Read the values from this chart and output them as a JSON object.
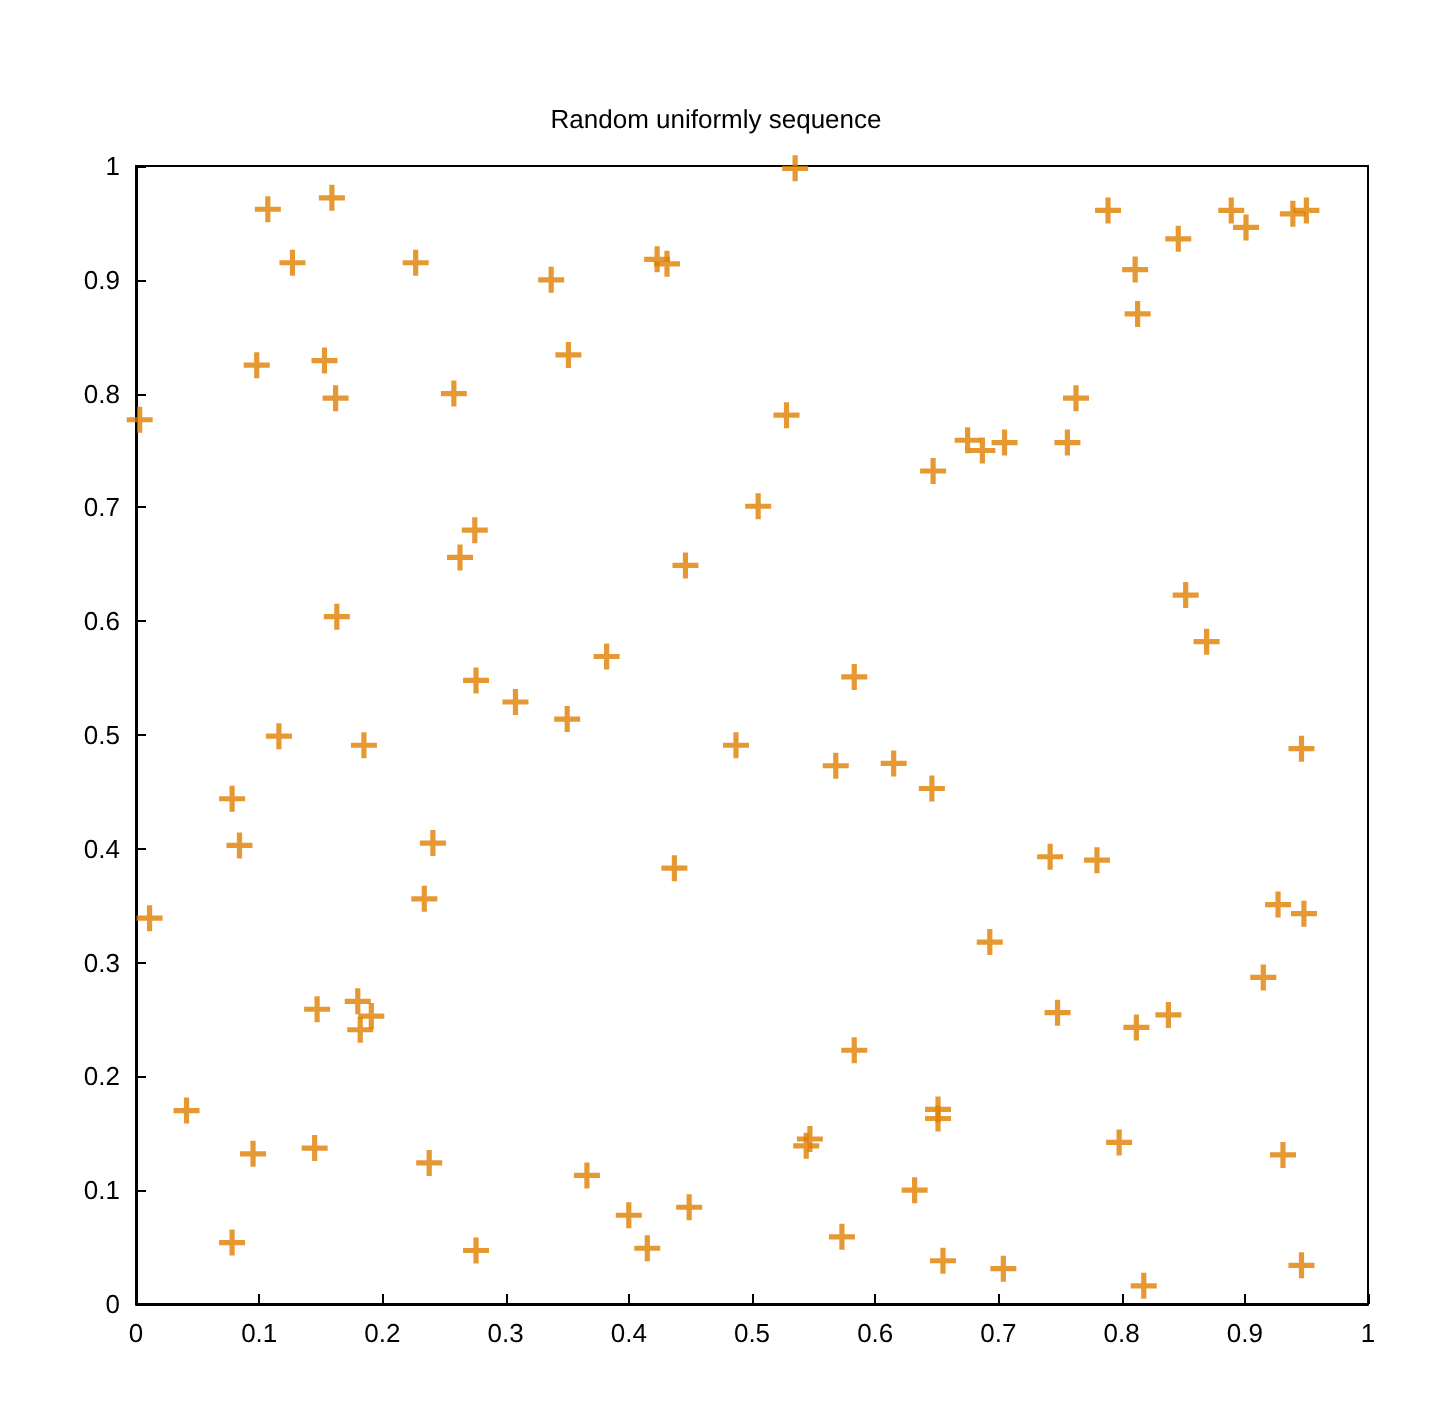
{
  "chart_data": {
    "type": "scatter",
    "title": "Random uniformly sequence",
    "xlim": [
      0,
      1
    ],
    "ylim": [
      0,
      1
    ],
    "xticks": [
      0,
      0.1,
      0.2,
      0.3,
      0.4,
      0.5,
      0.6,
      0.7,
      0.8,
      0.9,
      1
    ],
    "yticks": [
      0,
      0.1,
      0.2,
      0.3,
      0.4,
      0.5,
      0.6,
      0.7,
      0.8,
      0.9,
      1
    ],
    "grid": false,
    "marker": "cross",
    "series": [
      {
        "color": "#e08000",
        "x": [
          0.107,
          0.159,
          0.127,
          0.227,
          0.337,
          0.423,
          0.431,
          0.098,
          0.153,
          0.162,
          0.258,
          0.351,
          0.003,
          0.263,
          0.275,
          0.163,
          0.446,
          0.382,
          0.276,
          0.308,
          0.35,
          0.116,
          0.185,
          0.078,
          0.084,
          0.241,
          0.234,
          0.011,
          0.437,
          0.147,
          0.18,
          0.182,
          0.191,
          0.041,
          0.095,
          0.145,
          0.238,
          0.078,
          0.276,
          0.366,
          0.4,
          0.415,
          0.449,
          0.535,
          0.528,
          0.505,
          0.487,
          0.583,
          0.568,
          0.615,
          0.646,
          0.647,
          0.675,
          0.687,
          0.705,
          0.756,
          0.763,
          0.789,
          0.811,
          0.813,
          0.846,
          0.889,
          0.901,
          0.939,
          0.95,
          0.852,
          0.869,
          0.742,
          0.78,
          0.927,
          0.693,
          0.915,
          0.748,
          0.812,
          0.838,
          0.583,
          0.651,
          0.651,
          0.547,
          0.544,
          0.798,
          0.931,
          0.632,
          0.573,
          0.655,
          0.704,
          0.818,
          0.946,
          0.946,
          0.948
        ],
        "values": [
          0.962,
          0.972,
          0.915,
          0.915,
          0.9,
          0.918,
          0.914,
          0.825,
          0.829,
          0.796,
          0.8,
          0.834,
          0.777,
          0.656,
          0.68,
          0.604,
          0.649,
          0.569,
          0.548,
          0.529,
          0.514,
          0.499,
          0.491,
          0.444,
          0.403,
          0.405,
          0.356,
          0.339,
          0.383,
          0.259,
          0.266,
          0.241,
          0.253,
          0.17,
          0.132,
          0.137,
          0.124,
          0.054,
          0.047,
          0.113,
          0.078,
          0.049,
          0.085,
          0.998,
          0.781,
          0.701,
          0.491,
          0.551,
          0.473,
          0.475,
          0.453,
          0.732,
          0.759,
          0.75,
          0.757,
          0.757,
          0.796,
          0.961,
          0.909,
          0.87,
          0.936,
          0.961,
          0.946,
          0.958,
          0.961,
          0.623,
          0.582,
          0.393,
          0.39,
          0.351,
          0.318,
          0.287,
          0.256,
          0.243,
          0.254,
          0.223,
          0.171,
          0.163,
          0.145,
          0.139,
          0.142,
          0.131,
          0.1,
          0.059,
          0.038,
          0.031,
          0.016,
          0.034,
          0.488,
          0.343
        ]
      }
    ]
  }
}
